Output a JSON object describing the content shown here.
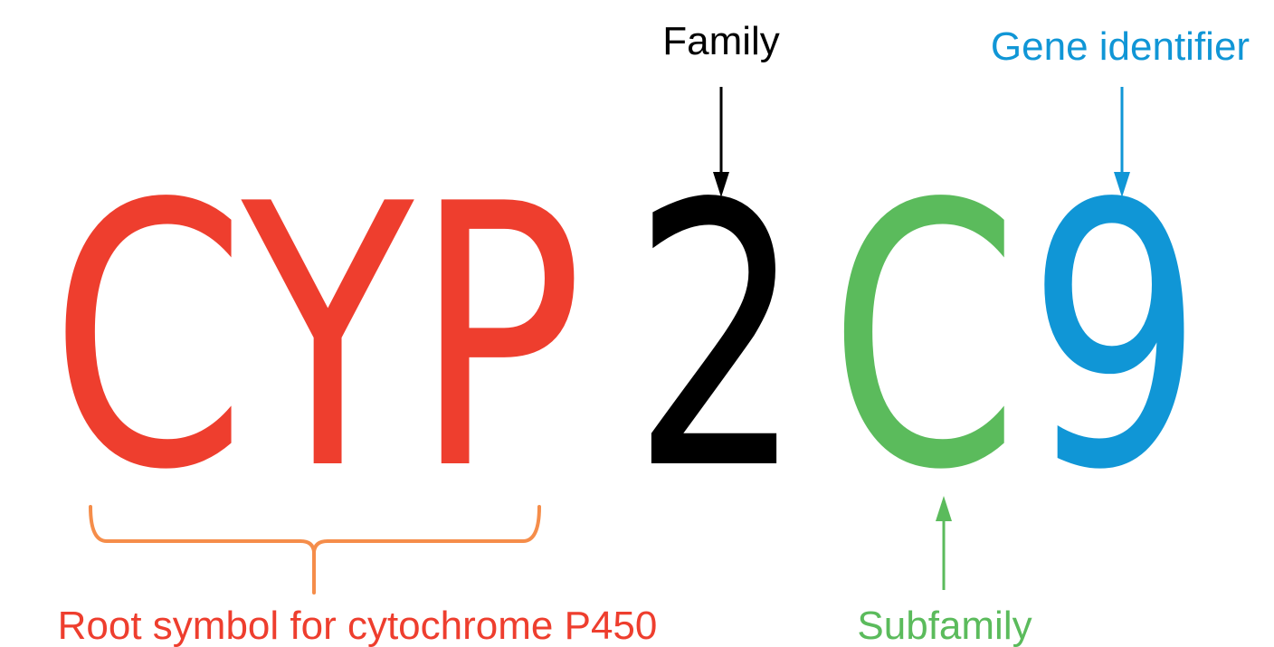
{
  "gene": {
    "root": "CYP",
    "family": "2",
    "subfamily": "C",
    "gene_id": "9"
  },
  "labels": {
    "family": "Family",
    "gene_identifier": "Gene identifier",
    "root": "Root symbol for cytochrome P450",
    "subfamily": "Subfamily"
  },
  "colors": {
    "root": "#ee3e2e",
    "family": "#000000",
    "subfamily": "#5bbb5c",
    "gene_id": "#1096d6",
    "bracket": "#f58d4a"
  }
}
